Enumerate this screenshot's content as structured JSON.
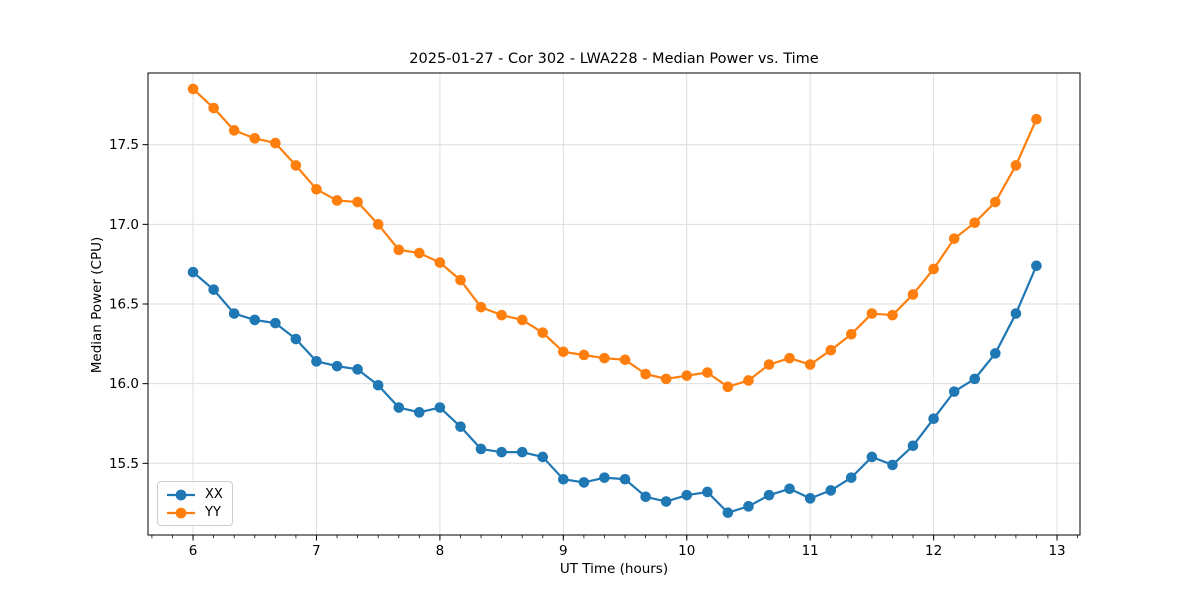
{
  "chart_data": {
    "type": "line",
    "title": "2025-01-27 - Cor 302 - LWA228 - Median Power vs. Time",
    "xlabel": "UT Time (hours)",
    "ylabel": "Median Power (CPU)",
    "xlim": [
      5.635,
      13.186
    ],
    "ylim": [
      15.05,
      17.95
    ],
    "xticks": {
      "values": [
        6,
        7,
        8,
        9,
        10,
        11,
        12,
        13
      ],
      "labels": [
        "6",
        "7",
        "8",
        "9",
        "10",
        "11",
        "12",
        "13"
      ]
    },
    "yticks": {
      "values": [
        15.5,
        16.0,
        16.5,
        17.0,
        17.5
      ],
      "labels": [
        "15.5",
        "16.0",
        "16.5",
        "17.0",
        "17.5"
      ]
    },
    "minor_xtick_step": 0.1666667,
    "grid": true,
    "legend_position": "lower-left",
    "grid_color": "#dedede",
    "axis_color": "#000000",
    "background_color": "#ffffff",
    "x": [
      6.0,
      6.167,
      6.333,
      6.5,
      6.667,
      6.833,
      7.0,
      7.167,
      7.333,
      7.5,
      7.667,
      7.833,
      8.0,
      8.167,
      8.333,
      8.5,
      8.667,
      8.833,
      9.0,
      9.167,
      9.333,
      9.5,
      9.667,
      9.833,
      10.0,
      10.167,
      10.333,
      10.5,
      10.667,
      10.833,
      11.0,
      11.167,
      11.333,
      11.5,
      11.667,
      11.833,
      12.0,
      12.167,
      12.333,
      12.5,
      12.667,
      12.833
    ],
    "series": [
      {
        "name": "XX",
        "color": "#1f77b4",
        "marker": "circle",
        "values": [
          16.7,
          16.59,
          16.44,
          16.4,
          16.38,
          16.28,
          16.14,
          16.11,
          16.09,
          15.99,
          15.85,
          15.82,
          15.85,
          15.73,
          15.59,
          15.57,
          15.57,
          15.54,
          15.4,
          15.38,
          15.41,
          15.4,
          15.29,
          15.26,
          15.3,
          15.32,
          15.19,
          15.23,
          15.3,
          15.34,
          15.28,
          15.33,
          15.41,
          15.54,
          15.49,
          15.61,
          15.78,
          15.95,
          16.03,
          16.19,
          16.44,
          16.74
        ]
      },
      {
        "name": "YY",
        "color": "#ff7f0e",
        "marker": "circle",
        "values": [
          17.85,
          17.73,
          17.59,
          17.54,
          17.51,
          17.37,
          17.22,
          17.15,
          17.14,
          17.0,
          16.84,
          16.82,
          16.76,
          16.65,
          16.48,
          16.43,
          16.4,
          16.32,
          16.2,
          16.18,
          16.16,
          16.15,
          16.06,
          16.03,
          16.05,
          16.07,
          15.98,
          16.02,
          16.12,
          16.16,
          16.12,
          16.21,
          16.31,
          16.44,
          16.43,
          16.56,
          16.72,
          16.91,
          17.01,
          17.14,
          17.37,
          17.66
        ]
      }
    ]
  }
}
